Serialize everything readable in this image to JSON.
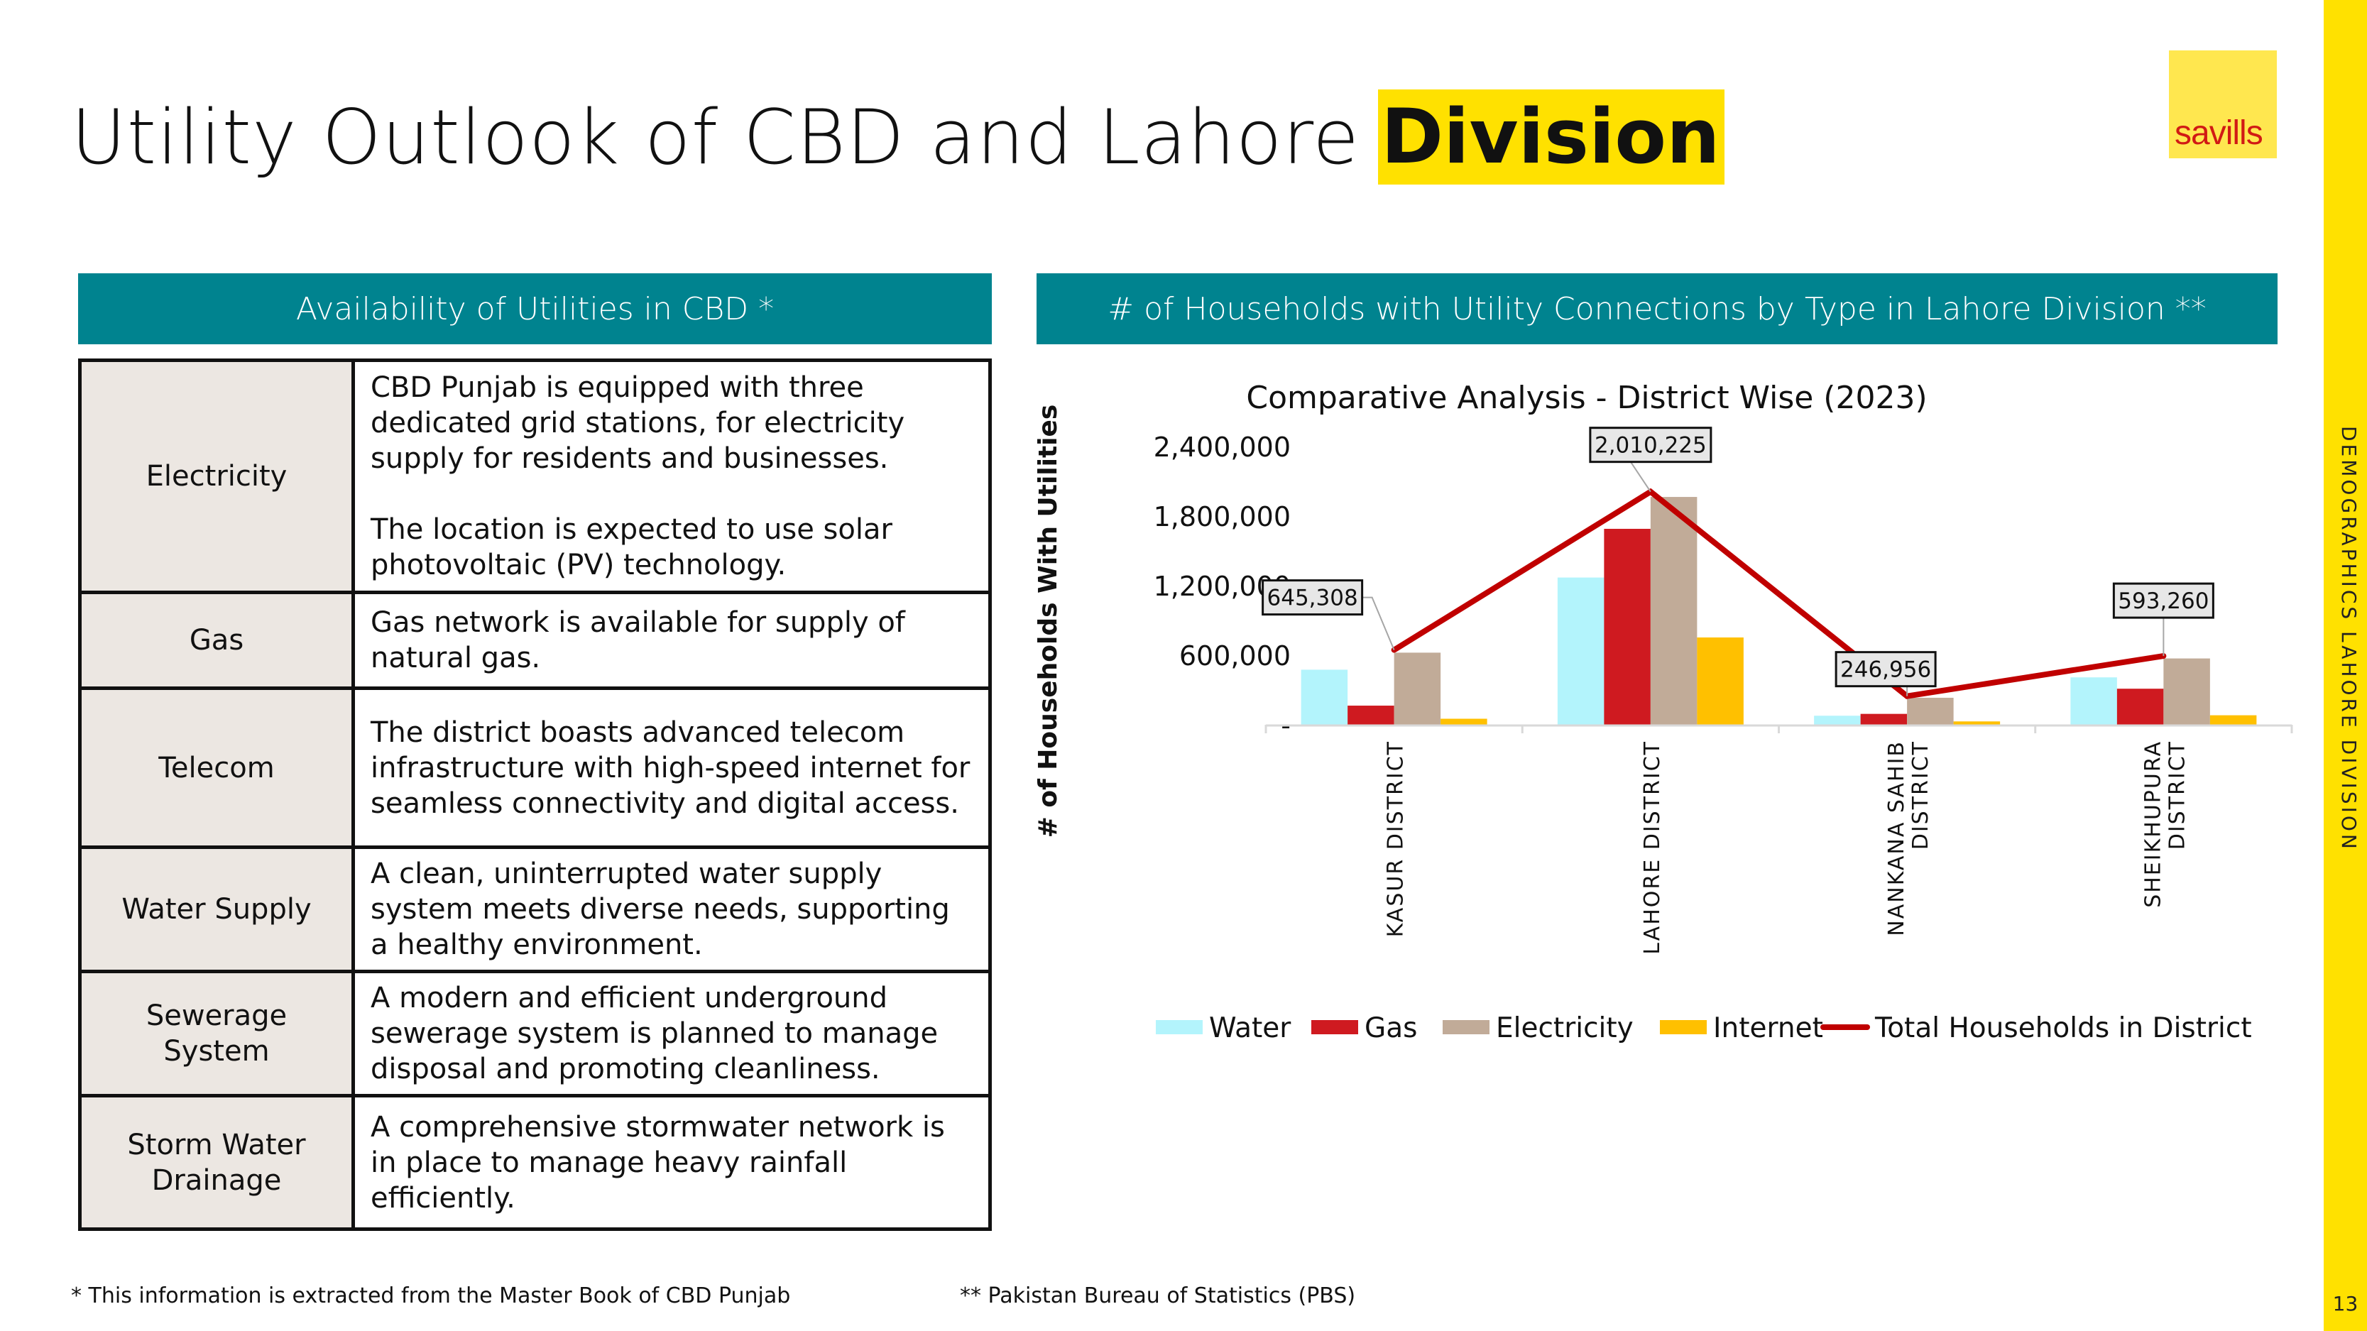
{
  "title": {
    "main": "Utility Outlook of CBD and Lahore",
    "highlight": "Division"
  },
  "logo": {
    "text": "savills"
  },
  "sidebar": {
    "section": "DEMOGRAPHICS LAHORE DIVISION",
    "page_number": "13"
  },
  "left_panel": {
    "header": "Availability of Utilities in CBD *",
    "rows": [
      {
        "label": "Electricity",
        "description": "CBD Punjab is equipped with three dedicated grid stations, for electricity supply for residents and businesses.\n\nThe location is expected to use solar photovoltaic (PV) technology."
      },
      {
        "label": "Gas",
        "description": "Gas network is available for supply of natural gas."
      },
      {
        "label": "Telecom",
        "description": "The district boasts advanced telecom infrastructure with high-speed internet for seamless connectivity and digital access."
      },
      {
        "label": "Water Supply",
        "description": "A clean, uninterrupted water supply system meets diverse needs, supporting a healthy environment."
      },
      {
        "label": "Sewerage System",
        "description": "A modern and efficient underground sewerage system is planned to manage disposal and promoting cleanliness."
      },
      {
        "label": "Storm Water Drainage",
        "description": "A comprehensive stormwater network is in place to manage heavy rainfall efficiently."
      }
    ]
  },
  "right_panel": {
    "header": "# of Households with Utility Connections by Type in Lahore Division **"
  },
  "footnotes": {
    "left": "* This information is extracted from the Master Book of CBD Punjab",
    "right": "** Pakistan Bureau of Statistics (PBS)"
  },
  "chart_data": {
    "type": "bar",
    "title": "Comparative Analysis - District Wise (2023)",
    "xlabel": "",
    "ylabel": "# of Households With Utilities",
    "ylim": [
      0,
      2400000
    ],
    "yticks": [
      0,
      600000,
      1200000,
      1800000,
      2400000
    ],
    "ytick_labels": [
      "-",
      "600,000",
      "1,200,000",
      "1,800,000",
      "2,400,000"
    ],
    "grid": false,
    "legend_position": "bottom",
    "categories": [
      [
        "KASUR DISTRICT"
      ],
      [
        "LAHORE DISTRICT"
      ],
      [
        "NANKANA SAHIB",
        "DISTRICT"
      ],
      [
        "SHEIKHUPURA",
        "DISTRICT"
      ]
    ],
    "series": [
      {
        "name": "Water",
        "kind": "bar",
        "color": "#B3F4FC",
        "values": [
          475000,
          1270000,
          78000,
          409000
        ]
      },
      {
        "name": "Gas",
        "kind": "bar",
        "color": "#CF1A20",
        "values": [
          165000,
          1690000,
          94000,
          311000
        ]
      },
      {
        "name": "Electricity",
        "kind": "bar",
        "color": "#C1AB98",
        "values": [
          622000,
          1965000,
          233000,
          572000
        ]
      },
      {
        "name": "Internet",
        "kind": "bar",
        "color": "#FFC000",
        "values": [
          52000,
          753000,
          29000,
          82000
        ]
      },
      {
        "name": "Total Households in District",
        "kind": "line",
        "color": "#C00000",
        "values": [
          645308,
          2010225,
          246956,
          593260
        ]
      }
    ],
    "data_labels": [
      "645,308",
      "2,010,225",
      "246,956",
      "593,260"
    ]
  }
}
